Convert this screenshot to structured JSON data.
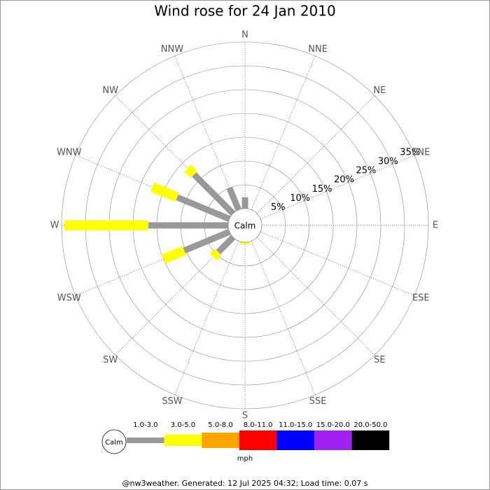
{
  "chart_data": {
    "type": "windrose",
    "title": "Wind rose for 24 Jan 2010",
    "categories": [
      "N",
      "NNE",
      "NE",
      "ENE",
      "E",
      "ESE",
      "SE",
      "SSE",
      "S",
      "SSW",
      "SW",
      "WSW",
      "W",
      "WNW",
      "NW",
      "NNW"
    ],
    "calm_label": "Calm",
    "unit": "mph",
    "rlim": [
      0,
      35
    ],
    "rticks": [
      {
        "value": 5,
        "label": "5%"
      },
      {
        "value": 10,
        "label": "10%"
      },
      {
        "value": 15,
        "label": "15%"
      },
      {
        "value": 20,
        "label": "20%"
      },
      {
        "value": 25,
        "label": "25%"
      },
      {
        "value": 30,
        "label": "30%"
      },
      {
        "value": 35,
        "label": "35%"
      }
    ],
    "series": [
      {
        "name": "1.0-3.0",
        "color": "#999999",
        "values": [
          2.4,
          0,
          0,
          0,
          0,
          0,
          0,
          0,
          0,
          0,
          4.4,
          10.3,
          16.8,
          11.9,
          11.6,
          5.0
        ]
      },
      {
        "name": "3.0-5.0",
        "color": "#ffff00",
        "values": [
          0,
          0,
          0,
          0,
          0,
          0,
          0,
          0,
          0.4,
          0,
          1.5,
          4.7,
          17.6,
          5.6,
          1.9,
          0
        ]
      },
      {
        "name": "5.0-8.0",
        "color": "#ffa500",
        "values": [
          0,
          0,
          0,
          0,
          0,
          0,
          0,
          0,
          0,
          0,
          0,
          0,
          0,
          0,
          0,
          0
        ]
      },
      {
        "name": "8.0-11.0",
        "color": "#ff0000",
        "values": [
          0,
          0,
          0,
          0,
          0,
          0,
          0,
          0,
          0,
          0,
          0,
          0,
          0,
          0,
          0,
          0
        ]
      },
      {
        "name": "11.0-15.0",
        "color": "#0000ff",
        "values": [
          0,
          0,
          0,
          0,
          0,
          0,
          0,
          0,
          0,
          0,
          0,
          0,
          0,
          0,
          0,
          0
        ]
      },
      {
        "name": "15.0-20.0",
        "color": "#a020f0",
        "values": [
          0,
          0,
          0,
          0,
          0,
          0,
          0,
          0,
          0,
          0,
          0,
          0,
          0,
          0,
          0,
          0
        ]
      },
      {
        "name": "20.0-50.0",
        "color": "#000000",
        "values": [
          0,
          0,
          0,
          0,
          0,
          0,
          0,
          0,
          0,
          0,
          0,
          0,
          0,
          0,
          0,
          0
        ]
      }
    ],
    "footer": "@nw3weather. Generated: 12 Jul 2025 04:32; Load time: 0.07 s"
  }
}
